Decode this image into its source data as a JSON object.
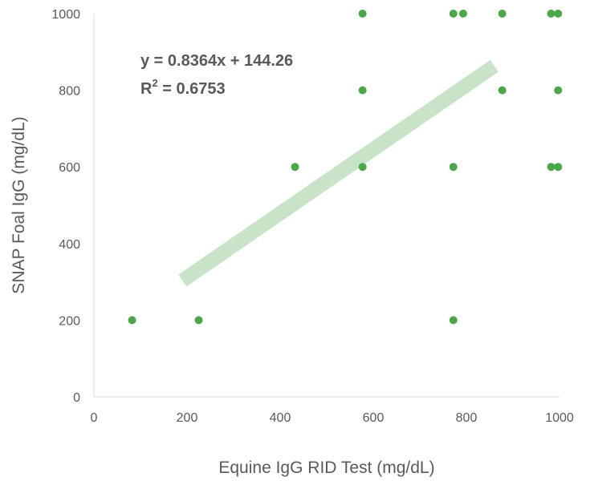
{
  "chart_data": {
    "type": "scatter",
    "xlabel": "Equine IgG RID Test (mg/dL)",
    "ylabel": "SNAP Foal IgG (mg/dL)",
    "xlim": [
      0,
      1000
    ],
    "ylim": [
      0,
      1000
    ],
    "x_ticks": [
      0,
      200,
      400,
      600,
      800,
      1000
    ],
    "y_ticks": [
      0,
      200,
      400,
      600,
      800,
      1000
    ],
    "grid": false,
    "colors": {
      "points": "#4aa84a",
      "trendline": "#c9e3c9",
      "axis": "#d9d9d9",
      "text": "#595959"
    },
    "points": [
      {
        "x": 82,
        "y": 200
      },
      {
        "x": 225,
        "y": 200
      },
      {
        "x": 432,
        "y": 600
      },
      {
        "x": 577,
        "y": 1000
      },
      {
        "x": 577,
        "y": 800
      },
      {
        "x": 577,
        "y": 600
      },
      {
        "x": 772,
        "y": 1000
      },
      {
        "x": 793,
        "y": 1000
      },
      {
        "x": 772,
        "y": 600
      },
      {
        "x": 772,
        "y": 200
      },
      {
        "x": 877,
        "y": 1000
      },
      {
        "x": 877,
        "y": 800
      },
      {
        "x": 982,
        "y": 1000
      },
      {
        "x": 997,
        "y": 1000
      },
      {
        "x": 997,
        "y": 800
      },
      {
        "x": 982,
        "y": 600
      },
      {
        "x": 997,
        "y": 600
      }
    ],
    "trendline": {
      "type": "linear",
      "slope": 0.8364,
      "intercept": 144.26,
      "x_range": [
        190,
        860
      ],
      "equation_label": "y = 0.8364x + 144.26",
      "r2_prefix": "R",
      "r2_sup": "2",
      "r2_value": " = 0.6753"
    }
  }
}
